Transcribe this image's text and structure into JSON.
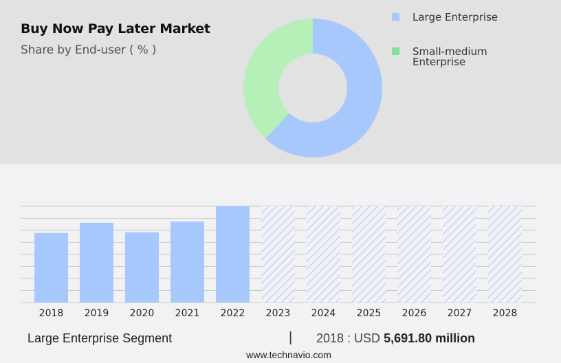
{
  "header": {
    "title": "Buy Now Pay Later Market",
    "subtitle": "Share by End-user ( % )"
  },
  "legend": [
    {
      "label": "Large Enterprise",
      "color": "#a7c8fd"
    },
    {
      "label": "Small-medium Enterprise",
      "label_line1": "Small-medium",
      "label_line2": "Enterprise",
      "color": "#80e09a"
    }
  ],
  "footer": {
    "segment_label": "Large Enterprise Segment",
    "separator": "|",
    "year_prefix": "2018 : USD ",
    "value": "5,691.80 million",
    "url": "www.technavio.com"
  },
  "colors": {
    "bar": "#a7c8fd",
    "donut_large": "#a7c8fd",
    "donut_small": "#b7efb9",
    "grid": "#c8c8c8"
  },
  "chart_data": [
    {
      "type": "pie",
      "variant": "donut",
      "title": "Buy Now Pay Later Market",
      "subtitle": "Share by End-user ( % )",
      "categories": [
        "Large Enterprise",
        "Small-medium Enterprise"
      ],
      "values": [
        62,
        38
      ],
      "legend_position": "right"
    },
    {
      "type": "bar",
      "title": "Large Enterprise Segment",
      "categories": [
        "2018",
        "2019",
        "2020",
        "2021",
        "2022",
        "2023",
        "2024",
        "2025",
        "2026",
        "2027",
        "2028"
      ],
      "values": [
        5691.8,
        6530,
        5740,
        6620,
        7880,
        null,
        null,
        null,
        null,
        null,
        null
      ],
      "forecast_categories": [
        "2023",
        "2024",
        "2025",
        "2026",
        "2027",
        "2028"
      ],
      "forecast_style": "hatched, full height (values not shown)",
      "ylabel": "USD million",
      "grid": true,
      "annotation": "2018 : USD 5,691.80 million"
    }
  ]
}
